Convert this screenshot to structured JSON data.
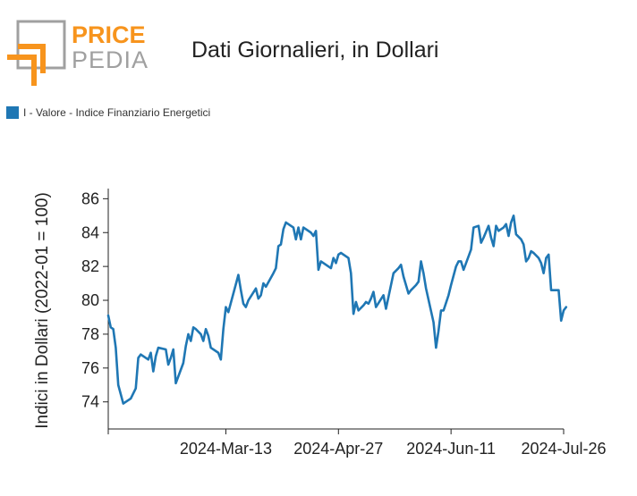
{
  "logo": {
    "line1": "PRICE",
    "line2": "PEDIA",
    "accent_color": "#f7941d",
    "gray_color": "#a0a0a0"
  },
  "title": "Dati Giornalieri, in Dollari",
  "legend": {
    "label": "I - Valore - Indice Finanziario Energetici",
    "color": "#1f77b4"
  },
  "chart_data": {
    "type": "line",
    "ylabel": "Indici in Dollari (2022-01 = 100)",
    "ylim": [
      72.4,
      86.6
    ],
    "yticks": [
      74,
      76,
      78,
      80,
      82,
      84,
      86
    ],
    "xlim": [
      "2024-01-26",
      "2024-07-26"
    ],
    "xticks": [
      {
        "x": "2024-01-26",
        "label": ""
      },
      {
        "x": "2024-03-13",
        "label": "2024-Mar-13"
      },
      {
        "x": "2024-04-27",
        "label": "2024-Apr-27"
      },
      {
        "x": "2024-06-11",
        "label": "2024-Jun-11"
      },
      {
        "x": "2024-07-26",
        "label": "2024-Jul-26"
      }
    ],
    "grid": false,
    "series": [
      {
        "name": "I - Valore - Indice Finanziario Energetici",
        "color": "#1f77b4",
        "points": [
          [
            "2024-01-26",
            79.1
          ],
          [
            "2024-01-27",
            78.4
          ],
          [
            "2024-01-28",
            78.3
          ],
          [
            "2024-01-29",
            77.2
          ],
          [
            "2024-01-30",
            75.0
          ],
          [
            "2024-02-01",
            73.9
          ],
          [
            "2024-02-04",
            74.2
          ],
          [
            "2024-02-06",
            74.8
          ],
          [
            "2024-02-07",
            76.6
          ],
          [
            "2024-02-08",
            76.8
          ],
          [
            "2024-02-10",
            76.6
          ],
          [
            "2024-02-11",
            76.5
          ],
          [
            "2024-02-12",
            76.9
          ],
          [
            "2024-02-13",
            75.8
          ],
          [
            "2024-02-14",
            76.7
          ],
          [
            "2024-02-15",
            77.2
          ],
          [
            "2024-02-18",
            77.1
          ],
          [
            "2024-02-19",
            76.2
          ],
          [
            "2024-02-20",
            76.6
          ],
          [
            "2024-02-21",
            77.1
          ],
          [
            "2024-02-22",
            75.1
          ],
          [
            "2024-02-25",
            76.3
          ],
          [
            "2024-02-26",
            77.3
          ],
          [
            "2024-02-27",
            78.0
          ],
          [
            "2024-02-28",
            77.6
          ],
          [
            "2024-02-29",
            78.4
          ],
          [
            "2024-03-01",
            78.3
          ],
          [
            "2024-03-03",
            78.0
          ],
          [
            "2024-03-04",
            77.6
          ],
          [
            "2024-03-05",
            78.3
          ],
          [
            "2024-03-06",
            77.9
          ],
          [
            "2024-03-07",
            77.2
          ],
          [
            "2024-03-10",
            76.9
          ],
          [
            "2024-03-11",
            76.5
          ],
          [
            "2024-03-12",
            78.3
          ],
          [
            "2024-03-13",
            79.6
          ],
          [
            "2024-03-14",
            79.3
          ],
          [
            "2024-03-18",
            81.5
          ],
          [
            "2024-03-19",
            80.6
          ],
          [
            "2024-03-20",
            79.8
          ],
          [
            "2024-03-21",
            79.6
          ],
          [
            "2024-03-22",
            80.0
          ],
          [
            "2024-03-25",
            80.7
          ],
          [
            "2024-03-26",
            80.1
          ],
          [
            "2024-03-27",
            80.3
          ],
          [
            "2024-03-28",
            81.0
          ],
          [
            "2024-03-29",
            80.8
          ],
          [
            "2024-04-01",
            81.6
          ],
          [
            "2024-04-02",
            81.9
          ],
          [
            "2024-04-03",
            83.2
          ],
          [
            "2024-04-04",
            83.3
          ],
          [
            "2024-04-05",
            84.2
          ],
          [
            "2024-04-06",
            84.6
          ],
          [
            "2024-04-09",
            84.3
          ],
          [
            "2024-04-10",
            83.6
          ],
          [
            "2024-04-11",
            84.3
          ],
          [
            "2024-04-12",
            83.6
          ],
          [
            "2024-04-13",
            84.3
          ],
          [
            "2024-04-16",
            84.0
          ],
          [
            "2024-04-17",
            83.8
          ],
          [
            "2024-04-18",
            84.1
          ],
          [
            "2024-04-19",
            81.8
          ],
          [
            "2024-04-20",
            82.3
          ],
          [
            "2024-04-24",
            81.9
          ],
          [
            "2024-04-25",
            82.5
          ],
          [
            "2024-04-26",
            82.2
          ],
          [
            "2024-04-27",
            82.7
          ],
          [
            "2024-04-28",
            82.8
          ],
          [
            "2024-05-01",
            82.5
          ],
          [
            "2024-05-02",
            81.6
          ],
          [
            "2024-05-03",
            79.2
          ],
          [
            "2024-05-04",
            79.9
          ],
          [
            "2024-05-05",
            79.4
          ],
          [
            "2024-05-07",
            79.7
          ],
          [
            "2024-05-08",
            79.9
          ],
          [
            "2024-05-09",
            79.8
          ],
          [
            "2024-05-10",
            80.1
          ],
          [
            "2024-05-11",
            80.5
          ],
          [
            "2024-05-12",
            79.6
          ],
          [
            "2024-05-15",
            80.3
          ],
          [
            "2024-05-16",
            79.5
          ],
          [
            "2024-05-17",
            80.2
          ],
          [
            "2024-05-19",
            81.6
          ],
          [
            "2024-05-21",
            81.9
          ],
          [
            "2024-05-22",
            82.1
          ],
          [
            "2024-05-23",
            81.4
          ],
          [
            "2024-05-25",
            80.4
          ],
          [
            "2024-05-26",
            80.6
          ],
          [
            "2024-05-28",
            80.9
          ],
          [
            "2024-05-29",
            81.1
          ],
          [
            "2024-05-30",
            82.3
          ],
          [
            "2024-05-31",
            81.6
          ],
          [
            "2024-06-01",
            80.7
          ],
          [
            "2024-06-04",
            78.7
          ],
          [
            "2024-06-05",
            77.2
          ],
          [
            "2024-06-06",
            78.2
          ],
          [
            "2024-06-07",
            79.4
          ],
          [
            "2024-06-08",
            79.4
          ],
          [
            "2024-06-10",
            80.3
          ],
          [
            "2024-06-11",
            80.9
          ],
          [
            "2024-06-13",
            82.0
          ],
          [
            "2024-06-14",
            82.3
          ],
          [
            "2024-06-15",
            82.3
          ],
          [
            "2024-06-16",
            81.8
          ],
          [
            "2024-06-18",
            82.6
          ],
          [
            "2024-06-19",
            83.0
          ],
          [
            "2024-06-20",
            84.3
          ],
          [
            "2024-06-22",
            84.4
          ],
          [
            "2024-06-23",
            83.4
          ],
          [
            "2024-06-24",
            83.7
          ],
          [
            "2024-06-26",
            84.4
          ],
          [
            "2024-06-27",
            83.7
          ],
          [
            "2024-06-28",
            83.2
          ],
          [
            "2024-06-29",
            84.4
          ],
          [
            "2024-06-30",
            84.1
          ],
          [
            "2024-07-02",
            84.3
          ],
          [
            "2024-07-03",
            84.5
          ],
          [
            "2024-07-04",
            83.8
          ],
          [
            "2024-07-05",
            84.6
          ],
          [
            "2024-07-06",
            85.0
          ],
          [
            "2024-07-07",
            83.9
          ],
          [
            "2024-07-09",
            83.6
          ],
          [
            "2024-07-10",
            83.3
          ],
          [
            "2024-07-11",
            82.3
          ],
          [
            "2024-07-12",
            82.5
          ],
          [
            "2024-07-13",
            82.9
          ],
          [
            "2024-07-14",
            82.8
          ],
          [
            "2024-07-16",
            82.5
          ],
          [
            "2024-07-17",
            82.2
          ],
          [
            "2024-07-18",
            81.6
          ],
          [
            "2024-07-19",
            82.5
          ],
          [
            "2024-07-20",
            82.7
          ],
          [
            "2024-07-21",
            80.6
          ],
          [
            "2024-07-24",
            80.6
          ],
          [
            "2024-07-25",
            78.8
          ],
          [
            "2024-07-26",
            79.4
          ],
          [
            "2024-07-27",
            79.6
          ]
        ]
      }
    ]
  }
}
